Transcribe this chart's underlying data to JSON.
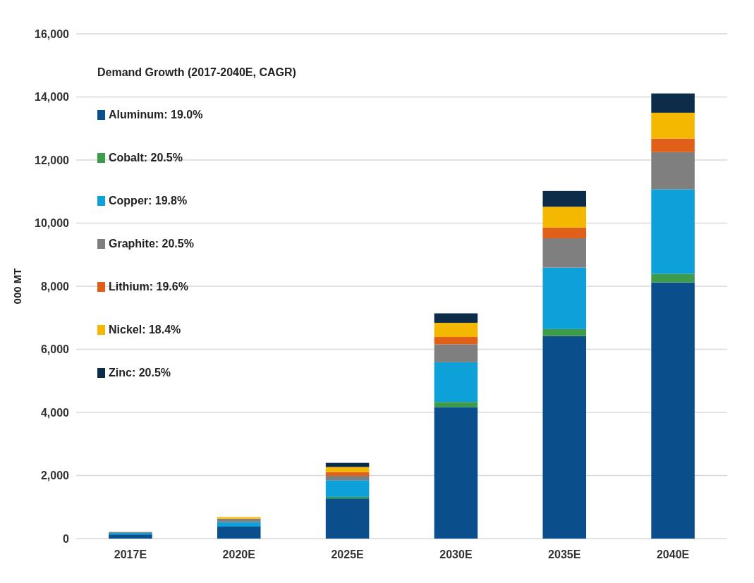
{
  "chart_data": {
    "type": "bar",
    "stacked": true,
    "ylabel": "000 MT",
    "legend_title": "Demand Growth (2017-2040E, CAGR)",
    "legend": "top left",
    "grid": "y",
    "categories": [
      "2017E",
      "2020E",
      "2025E",
      "2030E",
      "2035E",
      "2040E"
    ],
    "ylim": [
      0,
      16000
    ],
    "yticks": [
      {
        "value": 0,
        "label": "0"
      },
      {
        "value": 2000,
        "label": "2,000"
      },
      {
        "value": 4000,
        "label": "4,000"
      },
      {
        "value": 6000,
        "label": "6,000"
      },
      {
        "value": 8000,
        "label": "8,000"
      },
      {
        "value": 10000,
        "label": "10,000"
      },
      {
        "value": 12000,
        "label": "12,000"
      },
      {
        "value": 14000,
        "label": "14,000"
      },
      {
        "value": 16000,
        "label": "16,000"
      }
    ],
    "series": [
      {
        "name": "Aluminum: 19.0%",
        "color": "#0a4f8c",
        "values": [
          130,
          380,
          1270,
          4170,
          6420,
          8120
        ]
      },
      {
        "name": "Cobalt: 20.5%",
        "color": "#3d9c4a",
        "values": [
          null,
          null,
          50,
          160,
          220,
          270
        ]
      },
      {
        "name": "Copper: 19.8%",
        "color": "#0ea0d8",
        "values": [
          50,
          140,
          530,
          1260,
          1950,
          2680
        ]
      },
      {
        "name": "Graphite: 20.5%",
        "color": "#7f7f7f",
        "values": [
          30,
          110,
          140,
          570,
          930,
          1180
        ]
      },
      {
        "name": "Lithium: 19.6%",
        "color": "#e0601a",
        "values": [
          null,
          null,
          120,
          230,
          340,
          430
        ]
      },
      {
        "name": "Nickel: 18.4%",
        "color": "#f5b800",
        "values": [
          null,
          50,
          160,
          450,
          660,
          820
        ]
      },
      {
        "name": "Zinc: 20.5%",
        "color": "#0c2c4a",
        "values": [
          null,
          null,
          130,
          300,
          500,
          610
        ]
      }
    ]
  }
}
